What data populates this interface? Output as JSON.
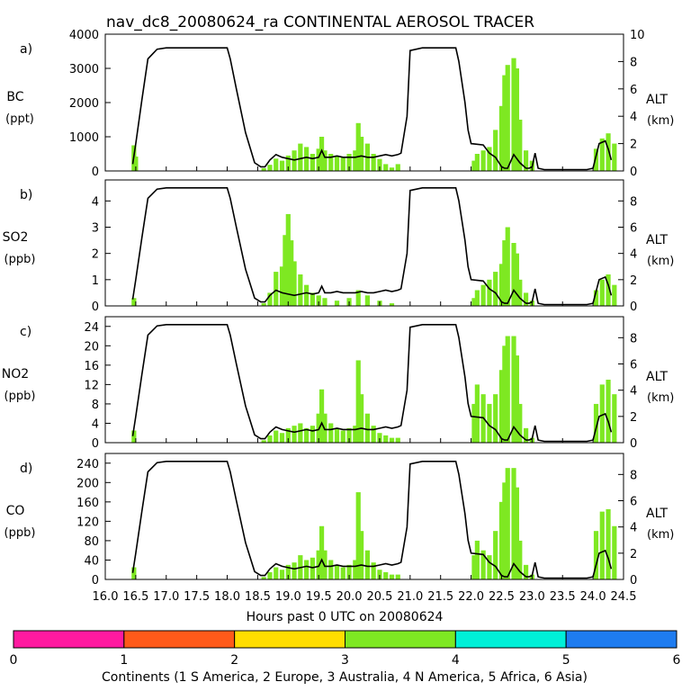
{
  "title": "nav_dc8_20080624_ra CONTINENTAL AEROSOL TRACER",
  "x_label": "Hours past 0 UTC on 20080624",
  "x_ticks": [
    16.0,
    16.5,
    17.0,
    17.5,
    18.0,
    18.5,
    19.0,
    19.5,
    20.0,
    20.5,
    21.0,
    21.5,
    22.0,
    22.5,
    23.0,
    23.5,
    24.0,
    24.5
  ],
  "x_tick_labels": [
    "16.0",
    "16.5",
    "17.0",
    "17.5",
    "18.0",
    "18.5",
    "19.0",
    "19.5",
    "20.0",
    "20.5",
    "21.0",
    "21.5",
    "22.0",
    "22.5",
    "23.0",
    "23.5",
    "24.0",
    "24.5"
  ],
  "x_range": [
    16.0,
    24.5
  ],
  "alt_axis": {
    "label": "ALT",
    "unit": "(km)",
    "range": [
      0,
      10
    ],
    "ticks": [
      0,
      2,
      4,
      6,
      8,
      10
    ]
  },
  "panels": [
    {
      "letter": "a)",
      "species": "BC",
      "unit": "(ppt)",
      "ymax": 4000,
      "ticks": [
        0,
        1000,
        2000,
        3000,
        4000
      ],
      "alt_range": [
        0,
        10
      ],
      "alt_ticks": [
        0,
        2,
        4,
        6,
        8,
        10
      ]
    },
    {
      "letter": "b)",
      "species": "SO2",
      "unit": "(ppb)",
      "ymax": 4.8,
      "ticks": [
        0,
        1,
        2,
        3,
        4
      ],
      "alt_range": [
        0,
        9.6
      ],
      "alt_ticks": [
        0,
        2,
        4,
        6,
        8
      ]
    },
    {
      "letter": "c)",
      "species": "NO2",
      "unit": "(ppb)",
      "ymax": 26,
      "ticks": [
        0,
        4,
        8,
        12,
        16,
        20,
        24
      ],
      "alt_range": [
        0,
        9.6
      ],
      "alt_ticks": [
        0,
        2,
        4,
        6,
        8
      ]
    },
    {
      "letter": "d)",
      "species": "CO",
      "unit": "(ppb)",
      "ymax": 260,
      "ticks": [
        0,
        40,
        80,
        120,
        160,
        200,
        240
      ],
      "alt_range": [
        0,
        9.6
      ],
      "alt_ticks": [
        0,
        2,
        4,
        6,
        8
      ]
    }
  ],
  "colorbar": {
    "title": "Continents (1 S America, 2 Europe, 3 Australia, 4 N America, 5 Africa, 6 Asia)",
    "tick_labels": [
      "0",
      "1",
      "2",
      "3",
      "4",
      "5",
      "6"
    ],
    "colors": [
      "#ff1aa0",
      "#ff5a1a",
      "#ffdd00",
      "#7ee822",
      "#00f0d8",
      "#1e7cf0"
    ]
  },
  "chart_data": {
    "type": "bar",
    "title": "nav_dc8_20080624_ra CONTINENTAL AEROSOL TRACER",
    "xlabel": "Hours past 0 UTC on 20080624",
    "xlim": [
      16.0,
      24.5
    ],
    "bar_color": "#7ee822",
    "note": "Bars show tracer values colored by dominant source continent (4 = N America); black line is aircraft altitude (km) on the right axis.",
    "altitude_km": {
      "x": [
        16.45,
        16.5,
        16.6,
        16.7,
        16.85,
        17.0,
        17.5,
        18.0,
        18.05,
        18.15,
        18.3,
        18.45,
        18.55,
        18.62,
        18.7,
        18.8,
        18.9,
        19.0,
        19.1,
        19.2,
        19.3,
        19.4,
        19.5,
        19.55,
        19.6,
        19.7,
        19.8,
        19.9,
        20.0,
        20.1,
        20.2,
        20.3,
        20.4,
        20.5,
        20.6,
        20.7,
        20.8,
        20.85,
        20.95,
        21.0,
        21.2,
        21.5,
        21.75,
        21.8,
        21.9,
        21.95,
        22.0,
        22.2,
        22.3,
        22.4,
        22.5,
        22.55,
        22.6,
        22.7,
        22.8,
        22.9,
        22.95,
        23.0,
        23.05,
        23.1,
        23.2,
        23.4,
        23.5,
        23.7,
        23.9,
        24.0,
        24.1,
        24.2,
        24.25,
        24.3
      ],
      "y": [
        0.5,
        2.0,
        5.2,
        8.2,
        8.9,
        9.0,
        9.0,
        9.0,
        8.2,
        6.0,
        2.8,
        0.6,
        0.3,
        0.3,
        0.8,
        1.2,
        1.0,
        0.9,
        0.8,
        0.9,
        1.0,
        0.9,
        1.0,
        1.5,
        1.0,
        1.0,
        1.1,
        1.0,
        1.0,
        1.0,
        1.1,
        1.0,
        1.0,
        1.1,
        1.2,
        1.1,
        1.2,
        1.3,
        4.0,
        8.8,
        9.0,
        9.0,
        9.0,
        8.0,
        5.0,
        3.0,
        2.0,
        1.9,
        1.3,
        1.0,
        0.3,
        0.2,
        0.2,
        1.2,
        0.6,
        0.2,
        0.2,
        0.3,
        1.3,
        0.2,
        0.1,
        0.1,
        0.1,
        0.1,
        0.1,
        0.2,
        2.0,
        2.2,
        1.6,
        0.8
      ]
    },
    "series": [
      {
        "name": "BC (ppt)",
        "values": [
          [
            16.47,
            750
          ],
          [
            16.5,
            420
          ],
          [
            18.6,
            80
          ],
          [
            18.7,
            180
          ],
          [
            18.8,
            360
          ],
          [
            18.9,
            300
          ],
          [
            19.0,
            450
          ],
          [
            19.1,
            600
          ],
          [
            19.2,
            800
          ],
          [
            19.3,
            700
          ],
          [
            19.4,
            500
          ],
          [
            19.5,
            650
          ],
          [
            19.55,
            1000
          ],
          [
            19.6,
            600
          ],
          [
            19.7,
            500
          ],
          [
            19.8,
            450
          ],
          [
            19.9,
            400
          ],
          [
            20.0,
            500
          ],
          [
            20.1,
            600
          ],
          [
            20.15,
            1400
          ],
          [
            20.2,
            1000
          ],
          [
            20.3,
            800
          ],
          [
            20.4,
            500
          ],
          [
            20.5,
            350
          ],
          [
            20.6,
            200
          ],
          [
            20.7,
            100
          ],
          [
            20.8,
            200
          ],
          [
            22.05,
            300
          ],
          [
            22.1,
            500
          ],
          [
            22.2,
            600
          ],
          [
            22.3,
            700
          ],
          [
            22.4,
            1200
          ],
          [
            22.5,
            1900
          ],
          [
            22.55,
            2800
          ],
          [
            22.6,
            3100
          ],
          [
            22.7,
            3300
          ],
          [
            22.75,
            3000
          ],
          [
            22.8,
            1500
          ],
          [
            22.9,
            600
          ],
          [
            23.0,
            300
          ],
          [
            24.05,
            650
          ],
          [
            24.15,
            950
          ],
          [
            24.25,
            1100
          ],
          [
            24.35,
            800
          ]
        ]
      },
      {
        "name": "SO2 (ppb)",
        "values": [
          [
            16.47,
            0.3
          ],
          [
            18.6,
            0.1
          ],
          [
            18.7,
            0.5
          ],
          [
            18.8,
            1.3
          ],
          [
            18.9,
            1.5
          ],
          [
            18.95,
            2.7
          ],
          [
            19.0,
            3.5
          ],
          [
            19.05,
            2.5
          ],
          [
            19.1,
            1.7
          ],
          [
            19.2,
            1.2
          ],
          [
            19.3,
            0.8
          ],
          [
            19.4,
            0.5
          ],
          [
            19.5,
            0.4
          ],
          [
            19.6,
            0.3
          ],
          [
            19.8,
            0.2
          ],
          [
            20.0,
            0.3
          ],
          [
            20.15,
            0.6
          ],
          [
            20.3,
            0.4
          ],
          [
            20.5,
            0.2
          ],
          [
            20.7,
            0.1
          ],
          [
            22.05,
            0.3
          ],
          [
            22.1,
            0.6
          ],
          [
            22.2,
            0.8
          ],
          [
            22.3,
            1.0
          ],
          [
            22.4,
            1.3
          ],
          [
            22.5,
            1.6
          ],
          [
            22.55,
            2.5
          ],
          [
            22.6,
            3.0
          ],
          [
            22.7,
            2.4
          ],
          [
            22.75,
            2.0
          ],
          [
            22.8,
            1.0
          ],
          [
            22.9,
            0.5
          ],
          [
            23.0,
            0.2
          ],
          [
            24.05,
            0.6
          ],
          [
            24.15,
            1.0
          ],
          [
            24.25,
            1.2
          ],
          [
            24.35,
            0.8
          ]
        ]
      },
      {
        "name": "NO2 (ppb)",
        "values": [
          [
            16.47,
            2.5
          ],
          [
            18.6,
            0.5
          ],
          [
            18.7,
            1.5
          ],
          [
            18.8,
            2.5
          ],
          [
            18.9,
            2.0
          ],
          [
            19.0,
            3.0
          ],
          [
            19.1,
            3.5
          ],
          [
            19.2,
            4.0
          ],
          [
            19.3,
            3.0
          ],
          [
            19.4,
            3.5
          ],
          [
            19.5,
            6.0
          ],
          [
            19.55,
            11.0
          ],
          [
            19.6,
            6.0
          ],
          [
            19.7,
            4.0
          ],
          [
            19.8,
            3.0
          ],
          [
            19.9,
            2.5
          ],
          [
            20.0,
            3.0
          ],
          [
            20.1,
            3.5
          ],
          [
            20.15,
            17.0
          ],
          [
            20.2,
            10.0
          ],
          [
            20.3,
            6.0
          ],
          [
            20.4,
            3.5
          ],
          [
            20.5,
            2.0
          ],
          [
            20.6,
            1.5
          ],
          [
            20.7,
            1.0
          ],
          [
            20.8,
            1.0
          ],
          [
            22.05,
            8.0
          ],
          [
            22.1,
            12.0
          ],
          [
            22.2,
            10.0
          ],
          [
            22.3,
            8.0
          ],
          [
            22.4,
            10.0
          ],
          [
            22.5,
            15.0
          ],
          [
            22.55,
            20.0
          ],
          [
            22.6,
            22.0
          ],
          [
            22.7,
            22.0
          ],
          [
            22.75,
            18.0
          ],
          [
            22.8,
            8.0
          ],
          [
            22.9,
            3.0
          ],
          [
            23.0,
            1.0
          ],
          [
            24.05,
            8.0
          ],
          [
            24.15,
            12.0
          ],
          [
            24.25,
            13.0
          ],
          [
            24.35,
            10.0
          ]
        ]
      },
      {
        "name": "CO (ppb)",
        "values": [
          [
            16.47,
            25
          ],
          [
            18.6,
            5
          ],
          [
            18.7,
            15
          ],
          [
            18.8,
            25
          ],
          [
            18.9,
            20
          ],
          [
            19.0,
            30
          ],
          [
            19.1,
            35
          ],
          [
            19.2,
            50
          ],
          [
            19.3,
            40
          ],
          [
            19.4,
            45
          ],
          [
            19.5,
            60
          ],
          [
            19.55,
            110
          ],
          [
            19.6,
            60
          ],
          [
            19.7,
            40
          ],
          [
            19.8,
            30
          ],
          [
            19.9,
            25
          ],
          [
            20.0,
            30
          ],
          [
            20.1,
            40
          ],
          [
            20.15,
            180
          ],
          [
            20.2,
            100
          ],
          [
            20.3,
            60
          ],
          [
            20.4,
            35
          ],
          [
            20.5,
            20
          ],
          [
            20.6,
            15
          ],
          [
            20.7,
            10
          ],
          [
            20.8,
            10
          ],
          [
            22.05,
            50
          ],
          [
            22.1,
            80
          ],
          [
            22.2,
            60
          ],
          [
            22.3,
            50
          ],
          [
            22.4,
            100
          ],
          [
            22.5,
            160
          ],
          [
            22.55,
            200
          ],
          [
            22.6,
            230
          ],
          [
            22.7,
            230
          ],
          [
            22.75,
            190
          ],
          [
            22.8,
            80
          ],
          [
            22.9,
            30
          ],
          [
            23.0,
            10
          ],
          [
            24.05,
            100
          ],
          [
            24.15,
            140
          ],
          [
            24.25,
            145
          ],
          [
            24.35,
            110
          ]
        ]
      }
    ]
  }
}
